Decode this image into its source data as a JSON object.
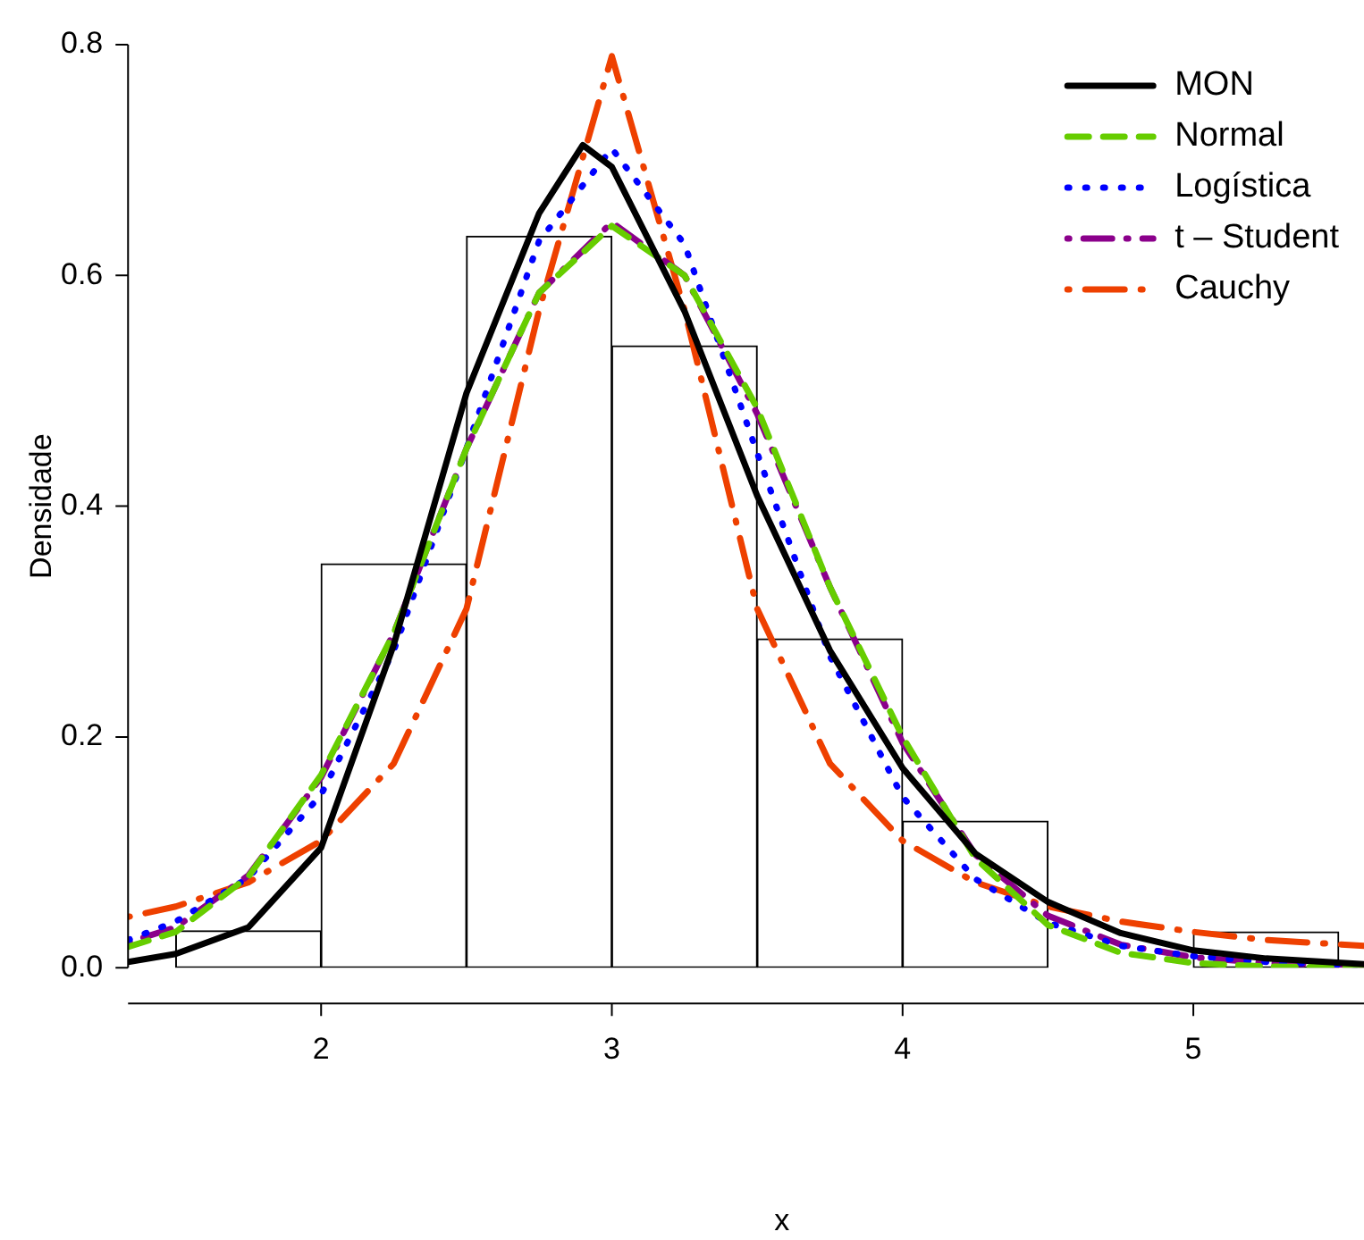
{
  "chart_data": {
    "type": "histogram",
    "xlabel": "x",
    "ylabel": "Densidade",
    "color": "#ffffff",
    "bins": [
      1.5,
      2,
      2.5,
      3,
      3.5,
      4,
      4.5,
      5,
      5.5
    ],
    "values": [
      0.032,
      0.35,
      0.634,
      0.539,
      0.285,
      0.127,
      0,
      0.031
    ],
    "xlim": [
      1.336,
      5.587
    ],
    "ylim": [
      0,
      0.8
    ],
    "xticks": [
      2,
      3,
      4,
      5
    ],
    "yticks": [
      {
        "value": 0,
        "label": "0.0"
      },
      {
        "value": 0.2,
        "label": "0.2"
      },
      {
        "value": 0.4,
        "label": "0.4"
      },
      {
        "value": 0.6,
        "label": "0.6"
      },
      {
        "value": 0.8,
        "label": "0.8"
      }
    ],
    "grid": false,
    "legend": "top right",
    "marker": "none",
    "series": [
      {
        "name": "MON",
        "type": "line",
        "color": "#000000",
        "line_style": "solid",
        "x": [
          1.336,
          1.5,
          1.75,
          2,
          2.25,
          2.5,
          2.75,
          2.9,
          3,
          3.25,
          3.5,
          3.75,
          4,
          4.25,
          4.5,
          4.75,
          5,
          5.25,
          5.587
        ],
        "values": [
          0.005,
          0.012,
          0.035,
          0.104,
          0.28,
          0.498,
          0.654,
          0.713,
          0.694,
          0.569,
          0.409,
          0.275,
          0.173,
          0.099,
          0.057,
          0.03,
          0.015,
          0.008,
          0.003
        ]
      },
      {
        "name": "Normal",
        "type": "line",
        "color": "#66cd00",
        "line_style": "dashed",
        "x": [
          1.336,
          1.5,
          1.75,
          2,
          2.25,
          2.5,
          2.75,
          3,
          3.25,
          3.5,
          3.75,
          4,
          4.25,
          4.5,
          4.75,
          5,
          5.25,
          5.587
        ],
        "values": [
          0.018,
          0.031,
          0.079,
          0.167,
          0.29,
          0.45,
          0.585,
          0.643,
          0.6,
          0.485,
          0.33,
          0.2,
          0.095,
          0.037,
          0.013,
          0.004,
          0.001,
          0
        ]
      },
      {
        "name": "Logística",
        "type": "line",
        "color": "#0000ff",
        "line_style": "dotted",
        "x": [
          1.336,
          1.5,
          1.75,
          2,
          2.25,
          2.5,
          2.75,
          3,
          3.25,
          3.5,
          3.75,
          4,
          4.25,
          4.5,
          4.75,
          5,
          5.25,
          5.587
        ],
        "values": [
          0.024,
          0.04,
          0.078,
          0.15,
          0.275,
          0.45,
          0.63,
          0.71,
          0.627,
          0.446,
          0.27,
          0.148,
          0.077,
          0.039,
          0.019,
          0.01,
          0.005,
          0.002
        ]
      },
      {
        "name": "t – Student",
        "type": "line",
        "color": "#8b008b",
        "line_style": "dashdot",
        "x": [
          1.336,
          1.5,
          1.75,
          2,
          2.25,
          2.5,
          2.75,
          3,
          3.25,
          3.5,
          3.75,
          4,
          4.25,
          4.5,
          4.75,
          5,
          5.25,
          5.587
        ],
        "values": [
          0.022,
          0.035,
          0.08,
          0.165,
          0.29,
          0.45,
          0.585,
          0.646,
          0.6,
          0.48,
          0.33,
          0.195,
          0.098,
          0.045,
          0.02,
          0.009,
          0.004,
          0.002
        ]
      },
      {
        "name": "Cauchy",
        "type": "line",
        "color": "#ee4000",
        "line_style": "longdashdot",
        "x": [
          1.336,
          1.5,
          1.75,
          2,
          2.25,
          2.5,
          2.75,
          3,
          3.25,
          3.5,
          3.75,
          4,
          4.25,
          4.5,
          4.75,
          5,
          5.25,
          5.587
        ],
        "values": [
          0.044,
          0.053,
          0.074,
          0.11,
          0.177,
          0.311,
          0.57,
          0.79,
          0.57,
          0.311,
          0.177,
          0.11,
          0.074,
          0.053,
          0.04,
          0.031,
          0.024,
          0.019
        ]
      }
    ]
  }
}
